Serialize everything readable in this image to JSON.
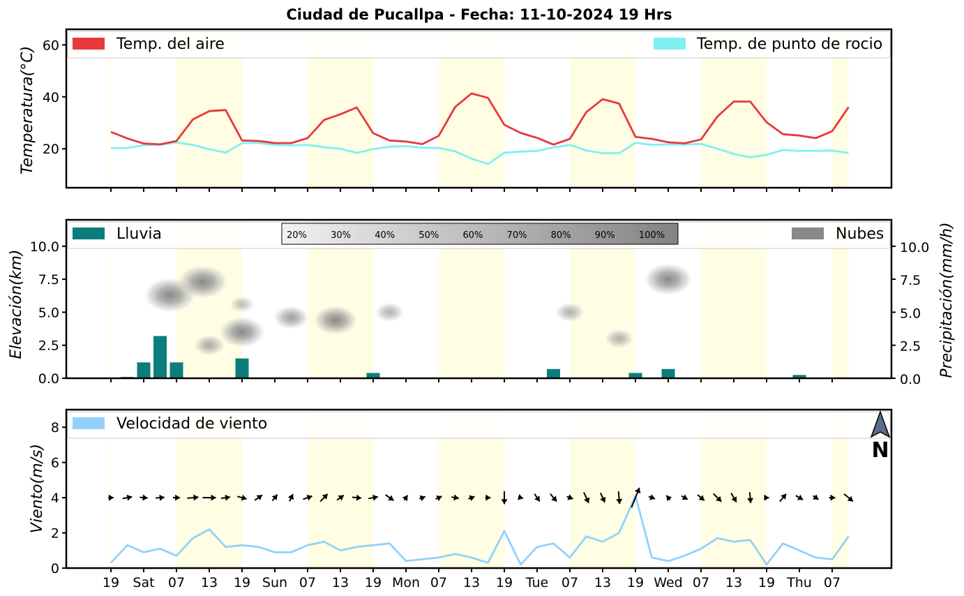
{
  "title": "Ciudad de Pucallpa   -   Fecha: 11-10-2024 19 Hrs",
  "x_tick_labels": [
    "19",
    "Sat",
    "07",
    "13",
    "19",
    "Sun",
    "07",
    "13",
    "19",
    "Mon",
    "07",
    "13",
    "19",
    "Tue",
    "07",
    "13",
    "19",
    "Wed",
    "07",
    "13",
    "19",
    "Thu",
    "07"
  ],
  "colors": {
    "air_temp": "#e8383a",
    "dew_point": "#7ff1f1",
    "rain": "#0c7d7d",
    "clouds": "#888888",
    "wind_speed": "#93d1fb",
    "night_band": "#fffde3",
    "arrows": "#000000"
  },
  "compass": {
    "icon": "north-arrow-icon",
    "label": "N"
  },
  "chart_data": [
    {
      "type": "line",
      "ylabel": "Temperatura(°C)",
      "ylim": [
        5,
        66
      ],
      "yticks": [
        "20",
        "40",
        "60"
      ],
      "grid": false,
      "legend_placement": "top",
      "series": [
        {
          "name": "Temp. del aire",
          "values": [
            26.5,
            24.0,
            22.0,
            21.7,
            23.0,
            31.3,
            34.5,
            34.9,
            23.2,
            23.0,
            22.2,
            22.2,
            24.1,
            31.1,
            33.3,
            35.9,
            26.0,
            23.2,
            22.8,
            21.8,
            25.0,
            36.1,
            41.3,
            39.6,
            29.2,
            26.1,
            24.2,
            21.6,
            23.8,
            34.1,
            39.1,
            37.4,
            24.6,
            23.8,
            22.5,
            22.1,
            23.6,
            32.4,
            38.2,
            38.2,
            30.2,
            25.6,
            25.1,
            24.1,
            26.8,
            36.0
          ]
        },
        {
          "name": "Temp. de punto de rocio",
          "values": [
            20.2,
            20.3,
            21.4,
            21.5,
            22.4,
            21.5,
            19.8,
            18.5,
            22.2,
            22.2,
            21.5,
            21.3,
            21.5,
            20.6,
            20.0,
            18.4,
            19.9,
            20.8,
            21.0,
            20.4,
            20.3,
            19.0,
            16.2,
            14.1,
            18.5,
            18.9,
            19.2,
            20.5,
            21.5,
            19.3,
            18.3,
            18.3,
            22.3,
            21.5,
            21.7,
            21.6,
            21.9,
            20.0,
            18.0,
            16.7,
            17.7,
            19.5,
            19.2,
            19.2,
            19.3,
            18.4
          ]
        }
      ]
    },
    {
      "type": "bar",
      "ylabel": "Elevación(km)",
      "ylabel_right": "Precipitación(mm/h)",
      "ylim": [
        0,
        12
      ],
      "yticks": [
        "0.0",
        "2.5",
        "5.0",
        "7.5",
        "10.0"
      ],
      "y2ticks": [
        "0.0",
        "2.5",
        "5.0",
        "7.5",
        "10.0"
      ],
      "legend": [
        {
          "name": "Lluvia",
          "color": "#0c7d7d"
        },
        {
          "name": "Nubes",
          "color": "#888888"
        }
      ],
      "colorbar_labels": [
        "20%",
        "30%",
        "40%",
        "50%",
        "60%",
        "70%",
        "80%",
        "90%",
        "100%"
      ],
      "rain_mm_h": [
        0,
        0.1,
        1.2,
        3.2,
        1.2,
        0,
        0,
        0,
        1.5,
        0,
        0,
        0,
        0,
        0,
        0,
        0,
        0.4,
        0.05,
        0,
        0,
        0,
        0,
        0,
        0,
        0,
        0,
        0.05,
        0.7,
        0.05,
        0,
        0,
        0,
        0.4,
        0.05,
        0.7,
        0,
        0,
        0,
        0,
        0,
        0,
        0,
        0.25,
        0,
        0,
        0
      ],
      "cloud_cells": [
        {
          "index": 3.6,
          "elevation_km": 6.3,
          "cover_pct": 85
        },
        {
          "index": 5.6,
          "elevation_km": 7.3,
          "cover_pct": 80
        },
        {
          "index": 8.0,
          "elevation_km": 3.5,
          "cover_pct": 70
        },
        {
          "index": 6.0,
          "elevation_km": 2.5,
          "cover_pct": 35
        },
        {
          "index": 8.0,
          "elevation_km": 5.6,
          "cover_pct": 20
        },
        {
          "index": 11.0,
          "elevation_km": 4.6,
          "cover_pct": 45
        },
        {
          "index": 13.7,
          "elevation_km": 4.4,
          "cover_pct": 65
        },
        {
          "index": 17.0,
          "elevation_km": 5.0,
          "cover_pct": 30
        },
        {
          "index": 28.0,
          "elevation_km": 5.0,
          "cover_pct": 30
        },
        {
          "index": 31.0,
          "elevation_km": 3.0,
          "cover_pct": 30
        },
        {
          "index": 34.0,
          "elevation_km": 7.5,
          "cover_pct": 75
        }
      ]
    },
    {
      "type": "line",
      "ylabel": "Viento(m/s)",
      "ylim": [
        0,
        9
      ],
      "yticks": [
        "0",
        "2",
        "4",
        "6",
        "8"
      ],
      "series": [
        {
          "name": "Velocidad de viento",
          "values": [
            0.3,
            1.3,
            0.9,
            1.1,
            0.7,
            1.7,
            2.2,
            1.2,
            1.3,
            1.2,
            0.9,
            0.9,
            1.3,
            1.5,
            1.0,
            1.2,
            1.3,
            1.4,
            0.4,
            0.5,
            0.6,
            0.8,
            0.6,
            0.3,
            2.1,
            0.2,
            1.2,
            1.4,
            0.6,
            1.8,
            1.5,
            2.0,
            4.1,
            0.6,
            0.4,
            0.7,
            1.1,
            1.7,
            1.5,
            1.6,
            0.2,
            1.4,
            1.0,
            0.6,
            0.5,
            1.8
          ]
        }
      ],
      "wind_direction_deg_from": [
        270,
        260,
        275,
        265,
        270,
        265,
        270,
        262,
        285,
        235,
        220,
        205,
        250,
        225,
        235,
        275,
        260,
        305,
        215,
        250,
        245,
        280,
        250,
        270,
        360,
        285,
        325,
        320,
        290,
        335,
        335,
        355,
        202,
        290,
        140,
        300,
        310,
        315,
        330,
        355,
        270,
        220,
        300,
        305,
        270,
        310
      ]
    }
  ]
}
